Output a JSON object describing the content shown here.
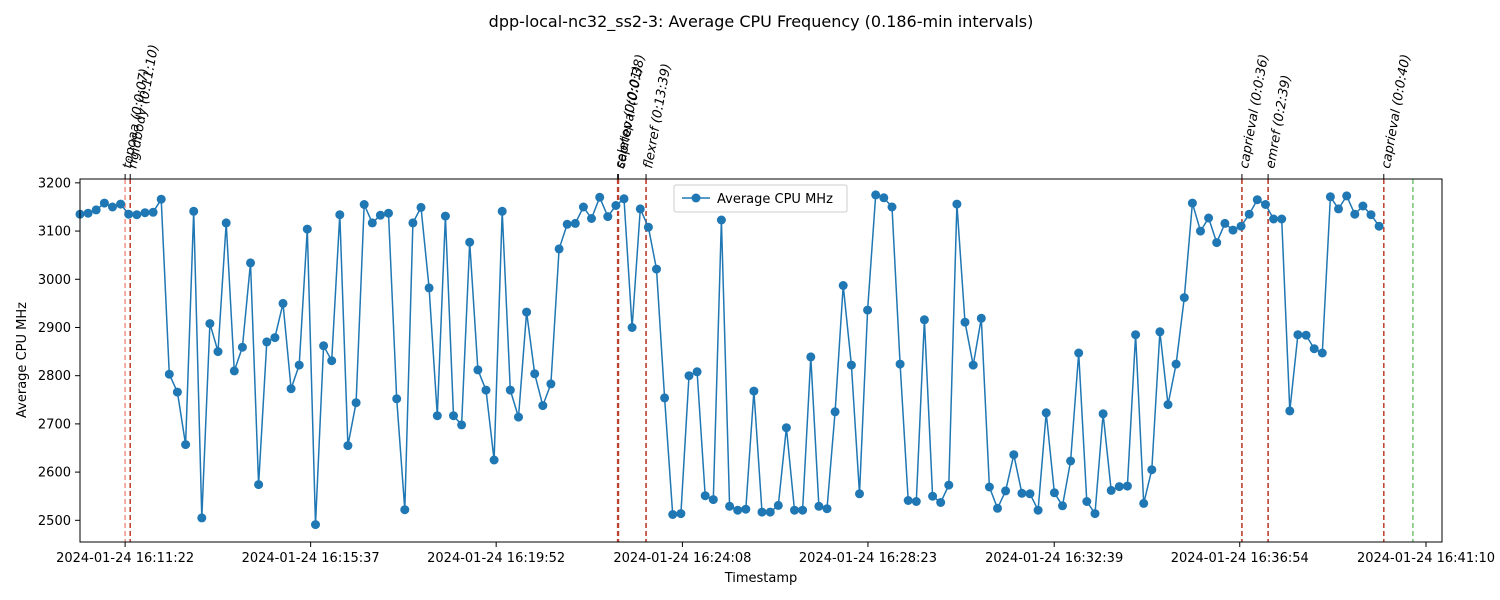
{
  "chart_data": {
    "type": "line",
    "title": "dpp-local-nc32_ss2-3: Average CPU Frequency (0.186-min intervals)",
    "xlabel": "Timestamp",
    "ylabel": "Average CPU MHz",
    "x_unit": "time",
    "xlim": [
      "2024-01-24 16:10:20",
      "2024-01-24 16:41:32"
    ],
    "ylim": [
      2455,
      3208
    ],
    "grid": false,
    "legend_position": "upper center",
    "x_ticks": [
      {
        "t": "2024-01-24 16:11:22",
        "label": "2024-01-24 16:11:22"
      },
      {
        "t": "2024-01-24 16:15:37",
        "label": "2024-01-24 16:15:37"
      },
      {
        "t": "2024-01-24 16:19:52",
        "label": "2024-01-24 16:19:52"
      },
      {
        "t": "2024-01-24 16:24:08",
        "label": "2024-01-24 16:24:08"
      },
      {
        "t": "2024-01-24 16:28:23",
        "label": "2024-01-24 16:28:23"
      },
      {
        "t": "2024-01-24 16:32:39",
        "label": "2024-01-24 16:32:39"
      },
      {
        "t": "2024-01-24 16:36:54",
        "label": "2024-01-24 16:36:54"
      },
      {
        "t": "2024-01-24 16:41:10",
        "label": "2024-01-24 16:41:10"
      }
    ],
    "y_ticks": [
      2500,
      2600,
      2700,
      2800,
      2900,
      3000,
      3100,
      3200
    ],
    "series": [
      {
        "name": "Average CPU MHz",
        "color": "#1f77b4",
        "start": "2024-01-24 16:10:20",
        "interval_seconds": 11.16,
        "values": [
          3135,
          3137,
          3144,
          3158,
          3150,
          3156,
          3135,
          3134,
          3138,
          3139,
          3166,
          2803,
          2766,
          2657,
          3141,
          2505,
          2908,
          2850,
          3117,
          2810,
          2859,
          3034,
          2574,
          2870,
          2879,
          2950,
          2773,
          2822,
          3104,
          2491,
          2862,
          2831,
          3134,
          2655,
          2744,
          3155,
          3117,
          3133,
          3137,
          2752,
          2522,
          3117,
          3149,
          2982,
          2717,
          3131,
          2717,
          2698,
          3077,
          2812,
          2770,
          2625,
          3141,
          2770,
          2714,
          2932,
          2804,
          2738,
          2783,
          3063,
          3114,
          3116,
          3150,
          3126,
          3170,
          3130,
          3153,
          3167,
          2900,
          3146,
          3108,
          3021,
          2754,
          2512,
          2514,
          2800,
          2808,
          2551,
          2543,
          3123,
          2529,
          2521,
          2523,
          2768,
          2517,
          2517,
          2531,
          2692,
          2521,
          2521,
          2839,
          2529,
          2524,
          2725,
          2987,
          2822,
          2555,
          2936,
          3175,
          3169,
          3150,
          2824,
          2541,
          2539,
          2916,
          2550,
          2537,
          2573,
          3156,
          2911,
          2822,
          2919,
          2569,
          2525,
          2561,
          2636,
          2556,
          2555,
          2521,
          2723,
          2557,
          2530,
          2623,
          2847,
          2539,
          2514,
          2721,
          2562,
          2570,
          2571,
          2885,
          2535,
          2605,
          2891,
          2740,
          2824,
          2962,
          3158,
          3100,
          3127,
          3076,
          3116,
          3102,
          3110,
          3135,
          3165,
          3155,
          3125,
          3125,
          2727,
          2885,
          2884,
          2856,
          2847,
          3171,
          3146,
          3173,
          3135,
          3152,
          3134,
          3110
        ]
      }
    ],
    "events": [
      {
        "label": "topoaa (0:0:07)",
        "start": "2024-01-24 16:11:22",
        "end": "2024-01-24 16:11:29"
      },
      {
        "label": "rigidbody (0:11:10)",
        "start": "2024-01-24 16:11:29",
        "end": "2024-01-24 16:22:39"
      },
      {
        "label": "seletop (0:0:01)",
        "start": "2024-01-24 16:22:39",
        "end": "2024-01-24 16:22:40"
      },
      {
        "label": "caprieval (0:0:38)",
        "start": "2024-01-24 16:22:40",
        "end": "2024-01-24 16:23:18"
      },
      {
        "label": "flexref (0:13:39)",
        "start": "2024-01-24 16:23:18",
        "end": "2024-01-24 16:36:57"
      },
      {
        "label": "caprieval (0:0:36)",
        "start": "2024-01-24 16:36:57",
        "end": "2024-01-24 16:37:33"
      },
      {
        "label": "emref (0:2:39)",
        "start": "2024-01-24 16:37:33",
        "end": "2024-01-24 16:40:12"
      },
      {
        "label": "caprieval (0:0:40)",
        "start": "2024-01-24 16:40:12",
        "end": "2024-01-24 16:40:52"
      }
    ]
  }
}
